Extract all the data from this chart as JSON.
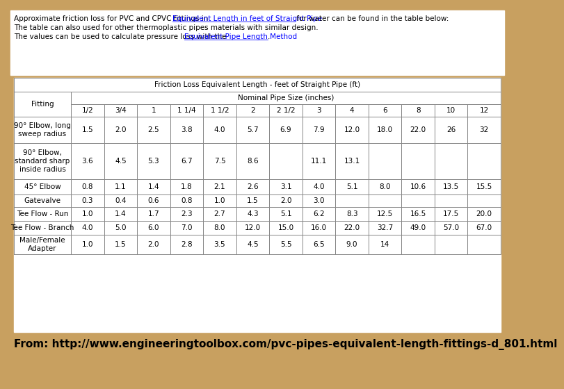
{
  "header_text_line1": "Approximate friction loss for PVC and CPVC fittings in ",
  "header_link1": "Equivalent Length in feet of Straight Pipe",
  "header_text_line1b": " for water can be found in the table below:",
  "header_line2": "The table can also used for other thermoplastic pipes materials with similar design.",
  "header_line3": "The values can be used to calculate pressure loss with the ",
  "header_link2": "Equivalent Pipe Length Method",
  "header_line3b": ".",
  "table_title": "Friction Loss Equivalent Length - feet of Straight Pipe (ft)",
  "nominal_header": "Nominal Pipe Size (inches)",
  "fitting_header": "Fitting",
  "col_headers": [
    "1/2",
    "3/4",
    "1",
    "1 1/4",
    "1 1/2",
    "2",
    "2 1/2",
    "3",
    "4",
    "6",
    "8",
    "10",
    "12"
  ],
  "rows": [
    {
      "name": "90° Elbow, long\nsweep radius",
      "values": [
        "1.5",
        "2.0",
        "2.5",
        "3.8",
        "4.0",
        "5.7",
        "6.9",
        "7.9",
        "12.0",
        "18.0",
        "22.0",
        "26",
        "32"
      ]
    },
    {
      "name": "90° Elbow,\nstandard sharp\ninside radius",
      "values": [
        "3.6",
        "4.5",
        "5.3",
        "6.7",
        "7.5",
        "8.6",
        "",
        "11.1",
        "13.1",
        "",
        "",
        "",
        ""
      ]
    },
    {
      "name": "45° Elbow",
      "values": [
        "0.8",
        "1.1",
        "1.4",
        "1.8",
        "2.1",
        "2.6",
        "3.1",
        "4.0",
        "5.1",
        "8.0",
        "10.6",
        "13.5",
        "15.5"
      ]
    },
    {
      "name": "Gatevalve",
      "values": [
        "0.3",
        "0.4",
        "0.6",
        "0.8",
        "1.0",
        "1.5",
        "2.0",
        "3.0",
        "",
        "",
        "",
        "",
        ""
      ]
    },
    {
      "name": "Tee Flow - Run",
      "values": [
        "1.0",
        "1.4",
        "1.7",
        "2.3",
        "2.7",
        "4.3",
        "5.1",
        "6.2",
        "8.3",
        "12.5",
        "16.5",
        "17.5",
        "20.0"
      ]
    },
    {
      "name": "Tee Flow - Branch",
      "values": [
        "4.0",
        "5.0",
        "6.0",
        "7.0",
        "8.0",
        "12.0",
        "15.0",
        "16.0",
        "22.0",
        "32.7",
        "49.0",
        "57.0",
        "67.0"
      ]
    },
    {
      "name": "Male/Female\nAdapter",
      "values": [
        "1.0",
        "1.5",
        "2.0",
        "2.8",
        "3.5",
        "4.5",
        "5.5",
        "6.5",
        "9.0",
        "14",
        "",
        "",
        ""
      ]
    }
  ],
  "footer_text": "From: http://www.engineeringtoolbox.com/pvc-pipes-equivalent-length-fittings-d_801.html",
  "bg_color": "#c8a060",
  "table_bg": "#ffffff",
  "border_color": "#888888",
  "header_fontsize": 7.5,
  "table_fontsize": 7.5,
  "footer_fontsize": 11
}
